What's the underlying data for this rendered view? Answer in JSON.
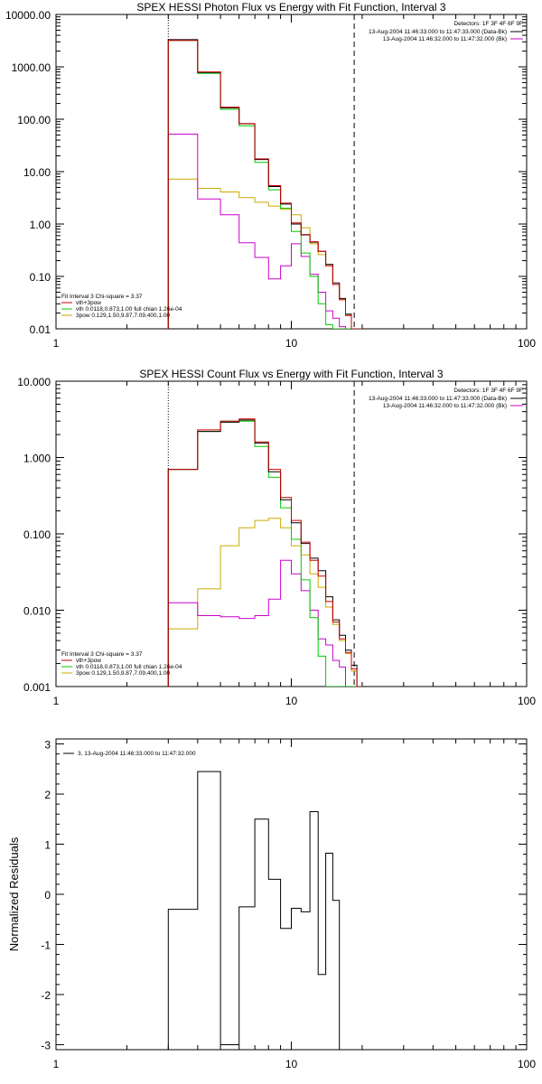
{
  "chart_data": [
    {
      "type": "line",
      "step": true,
      "title": "SPEX HESSI Photon Flux vs Energy with Fit Function, Interval 3",
      "xscale": "log",
      "yscale": "log",
      "xlim": [
        1,
        100
      ],
      "ylim": [
        0.01,
        10000
      ],
      "xticks": [
        "1",
        "10",
        "100"
      ],
      "yticks": [
        "10000.00",
        "1000.00",
        "100.00",
        "10.00",
        "1.00",
        "0.10",
        "0.01"
      ],
      "legend_top_right": {
        "detectors": "Detectors: 1F 3F 4F 6F 9F",
        "entries": [
          {
            "label": "13-Aug-2004 11:46:33.000 to 11:47:33.000 (Data-Bk)",
            "color": "#000000"
          },
          {
            "label": "13-Aug-2004 11:46:32.000 to 11:47:32.000 (Bk)",
            "color": "#cc00cc"
          }
        ]
      },
      "legend_bottom_left": {
        "header": "Fit Interval 3   Chi-square = 3.37",
        "entries": [
          {
            "label": "vth+3pow",
            "color": "#cc0000"
          },
          {
            "label": "vth 0.0118,0.873,1.00  full chian 1.26e-04",
            "color": "#00cc00"
          },
          {
            "label": "3pow 0.129,1.50,9.87,7.09,400,1.00",
            "color": "#ccaa00"
          }
        ]
      },
      "markers": [
        {
          "x": 3.0,
          "style": "dotted"
        },
        {
          "x": 18.5,
          "style": "dashed"
        }
      ],
      "edges": [
        3,
        4,
        5,
        6,
        7,
        8,
        9,
        10,
        11,
        12,
        13,
        14,
        15,
        16,
        17,
        18,
        19,
        20
      ],
      "series": [
        {
          "color": "#000000",
          "values": [
            3300,
            780,
            165,
            82,
            17,
            5.2,
            2.4,
            1.0,
            0.62,
            0.45,
            0.3,
            0.17,
            0.075,
            0.038,
            0.019,
            0.01,
            0.01
          ]
        },
        {
          "color": "#cc0000",
          "values": [
            3200,
            800,
            170,
            83,
            17.5,
            5.4,
            2.5,
            1.05,
            0.63,
            0.46,
            0.3,
            0.16,
            0.07,
            0.036,
            0.018,
            0.01,
            0.01
          ]
        },
        {
          "color": "#00cc00",
          "values": [
            3200,
            750,
            155,
            75,
            15,
            4.5,
            2.0,
            0.72,
            0.28,
            0.1,
            0.03,
            0.012,
            0.01,
            0.01,
            0.01,
            0.01,
            0.01
          ]
        },
        {
          "color": "#cc00cc",
          "values": [
            52,
            3.0,
            1.5,
            0.44,
            0.23,
            0.09,
            0.16,
            0.42,
            0.24,
            0.11,
            0.05,
            0.022,
            0.016,
            0.011,
            0.01,
            0.01,
            0.01
          ]
        },
        {
          "color": "#ccaa00",
          "values": [
            7.2,
            4.8,
            4.1,
            3.2,
            2.6,
            2.2,
            1.9,
            1.5,
            0.85,
            0.42,
            0.26,
            0.16,
            0.07,
            0.036,
            0.018,
            0.01,
            0.01
          ]
        }
      ]
    },
    {
      "type": "line",
      "step": true,
      "title": "SPEX HESSI Count Flux vs Energy with Fit Function, Interval 3",
      "xscale": "log",
      "yscale": "log",
      "xlim": [
        1,
        100
      ],
      "ylim": [
        0.001,
        10
      ],
      "xticks": [
        "1",
        "10",
        "100"
      ],
      "yticks": [
        "10.000",
        "1.000",
        "0.100",
        "0.010",
        "0.001"
      ],
      "legend_top_right": {
        "detectors": "Detectors: 1F 3F 4F 6F 9F",
        "entries": [
          {
            "label": "13-Aug-2004 11:46:33.000 to 11:47:33.000 (Data-Bk)",
            "color": "#000000"
          },
          {
            "label": "13-Aug-2004 11:46:32.000 to 11:47:32.000 (Bk)",
            "color": "#cc00cc"
          }
        ]
      },
      "legend_bottom_left": {
        "header": "Fit Interval 3   Chi-square = 3.37",
        "entries": [
          {
            "label": "vth+3pow",
            "color": "#cc0000"
          },
          {
            "label": "vth 0.0118,0.873,1.00  full chian 1.26e-04",
            "color": "#00cc00"
          },
          {
            "label": "3pow 0.129,1.50,9.87,7.09,400,1.00",
            "color": "#ccaa00"
          }
        ]
      },
      "markers": [
        {
          "x": 3.0,
          "style": "dotted"
        },
        {
          "x": 18.5,
          "style": "dashed"
        }
      ],
      "edges": [
        3,
        4,
        5,
        6,
        7,
        8,
        9,
        10,
        11,
        12,
        13,
        14,
        15,
        16,
        17,
        18,
        19,
        20
      ],
      "series": [
        {
          "color": "#000000",
          "values": [
            0.7,
            2.2,
            2.9,
            3.1,
            1.55,
            0.65,
            0.28,
            0.14,
            0.075,
            0.048,
            0.033,
            0.015,
            0.0075,
            0.0047,
            0.003,
            0.0019,
            0.001
          ]
        },
        {
          "color": "#cc0000",
          "values": [
            0.7,
            2.3,
            3.0,
            3.2,
            1.6,
            0.7,
            0.3,
            0.15,
            0.078,
            0.045,
            0.028,
            0.013,
            0.007,
            0.0042,
            0.0028,
            0.0017,
            0.001
          ]
        },
        {
          "color": "#00cc00",
          "values": [
            0.7,
            2.2,
            3.0,
            3.0,
            1.4,
            0.55,
            0.22,
            0.085,
            0.025,
            0.008,
            0.0025,
            0.001,
            0.001,
            0.001,
            0.001,
            0.001,
            0.001
          ]
        },
        {
          "color": "#cc00cc",
          "values": [
            0.0125,
            0.0085,
            0.0082,
            0.0078,
            0.0085,
            0.014,
            0.045,
            0.03,
            0.018,
            0.01,
            0.0042,
            0.0035,
            0.0022,
            0.0018,
            0.001,
            0.001,
            0.001
          ]
        },
        {
          "color": "#ccaa00",
          "values": [
            0.0057,
            0.019,
            0.07,
            0.12,
            0.15,
            0.16,
            0.12,
            0.07,
            0.053,
            0.03,
            0.02,
            0.011,
            0.0065,
            0.004,
            0.0027,
            0.0016,
            0.001
          ]
        }
      ]
    },
    {
      "type": "line",
      "step": true,
      "title": "",
      "ylabel": "Normalized Residuals",
      "xscale": "log",
      "yscale": "linear",
      "xlim": [
        1,
        100
      ],
      "ylim": [
        -3.1,
        3.1
      ],
      "xticks": [
        "1",
        "10",
        "100"
      ],
      "yticks": [
        "3",
        "2",
        "1",
        "0",
        "-1",
        "-2",
        "-3"
      ],
      "legend_top_left": {
        "entries": [
          {
            "label": "3, 13-Aug-2004 11:46:33.000 to 11:47:32.000",
            "color": "#000000"
          }
        ]
      },
      "edges": [
        3,
        4,
        5,
        6,
        7,
        8,
        9,
        10,
        11,
        12,
        13,
        14,
        15,
        16,
        17,
        18
      ],
      "series": [
        {
          "color": "#000000",
          "values": [
            -0.3,
            2.45,
            -3.0,
            -0.25,
            1.5,
            0.3,
            -0.68,
            -0.28,
            -0.35,
            1.65,
            -1.6,
            0.82,
            -0.12,
            -3.1,
            -3.1
          ]
        }
      ]
    }
  ]
}
